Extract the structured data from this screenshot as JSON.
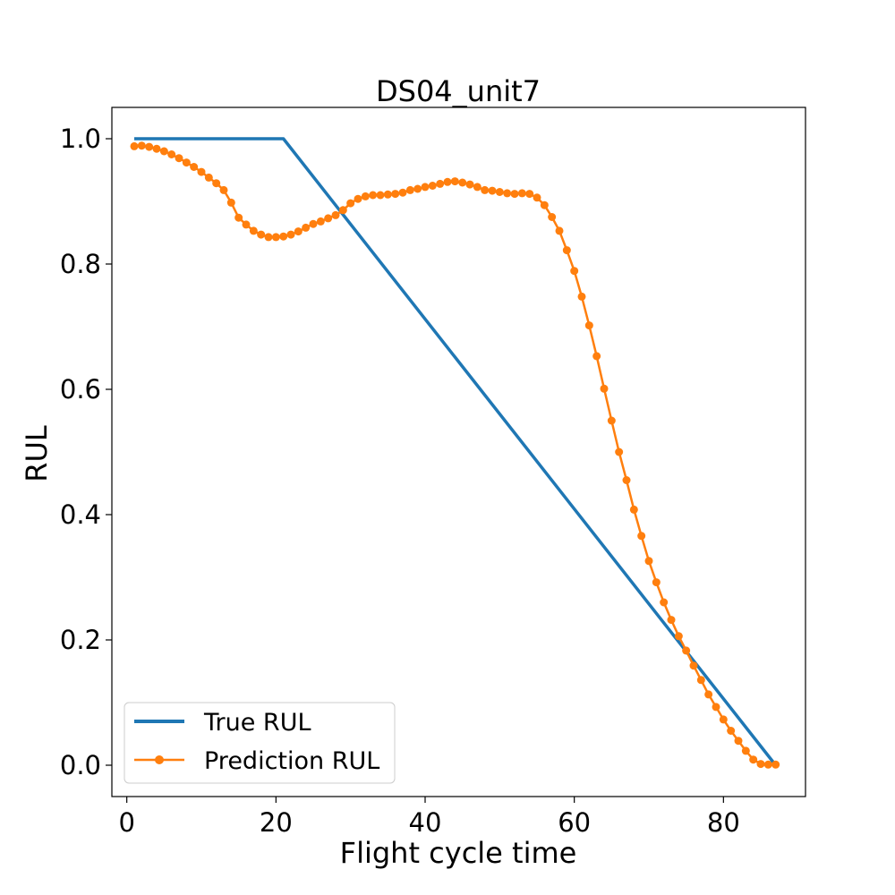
{
  "chart_data": {
    "type": "line",
    "title": "DS04_unit7",
    "xlabel": "Flight cycle time",
    "ylabel": "RUL",
    "xlim": [
      -2,
      91
    ],
    "ylim": [
      -0.05,
      1.05
    ],
    "xticks": [
      0,
      20,
      40,
      60,
      80
    ],
    "xtick_labels": [
      "0",
      "20",
      "40",
      "60",
      "80"
    ],
    "yticks": [
      0.0,
      0.2,
      0.4,
      0.6,
      0.8,
      1.0
    ],
    "ytick_labels": [
      "0.0",
      "0.2",
      "0.4",
      "0.6",
      "0.8",
      "1.0"
    ],
    "grid": false,
    "legend_position": "lower-left",
    "series": [
      {
        "name": "True RUL",
        "color": "#1f77b4",
        "marker": "none",
        "x": [
          1,
          21,
          87
        ],
        "y": [
          1.0,
          1.0,
          0.0
        ]
      },
      {
        "name": "Prediction RUL",
        "color": "#ff7f0e",
        "marker": "circle",
        "x": [
          1,
          2,
          3,
          4,
          5,
          6,
          7,
          8,
          9,
          10,
          11,
          12,
          13,
          14,
          15,
          16,
          17,
          18,
          19,
          20,
          21,
          22,
          23,
          24,
          25,
          26,
          27,
          28,
          29,
          30,
          31,
          32,
          33,
          34,
          35,
          36,
          37,
          38,
          39,
          40,
          41,
          42,
          43,
          44,
          45,
          46,
          47,
          48,
          49,
          50,
          51,
          52,
          53,
          54,
          55,
          56,
          57,
          58,
          59,
          60,
          61,
          62,
          63,
          64,
          65,
          66,
          67,
          68,
          69,
          70,
          71,
          72,
          73,
          74,
          75,
          76,
          77,
          78,
          79,
          80,
          81,
          82,
          83,
          84,
          85,
          86,
          87
        ],
        "y": [
          0.988,
          0.989,
          0.987,
          0.984,
          0.98,
          0.975,
          0.969,
          0.962,
          0.955,
          0.947,
          0.938,
          0.929,
          0.918,
          0.898,
          0.874,
          0.863,
          0.853,
          0.847,
          0.843,
          0.843,
          0.844,
          0.847,
          0.852,
          0.858,
          0.864,
          0.868,
          0.873,
          0.878,
          0.886,
          0.897,
          0.904,
          0.908,
          0.91,
          0.91,
          0.911,
          0.912,
          0.914,
          0.918,
          0.92,
          0.923,
          0.925,
          0.928,
          0.931,
          0.932,
          0.93,
          0.927,
          0.923,
          0.918,
          0.917,
          0.915,
          0.913,
          0.912,
          0.913,
          0.912,
          0.906,
          0.894,
          0.875,
          0.853,
          0.822,
          0.789,
          0.748,
          0.702,
          0.653,
          0.601,
          0.55,
          0.5,
          0.455,
          0.408,
          0.366,
          0.326,
          0.292,
          0.26,
          0.232,
          0.206,
          0.183,
          0.159,
          0.136,
          0.113,
          0.093,
          0.073,
          0.055,
          0.039,
          0.023,
          0.009,
          0.002,
          0.001,
          0.001
        ]
      }
    ]
  }
}
